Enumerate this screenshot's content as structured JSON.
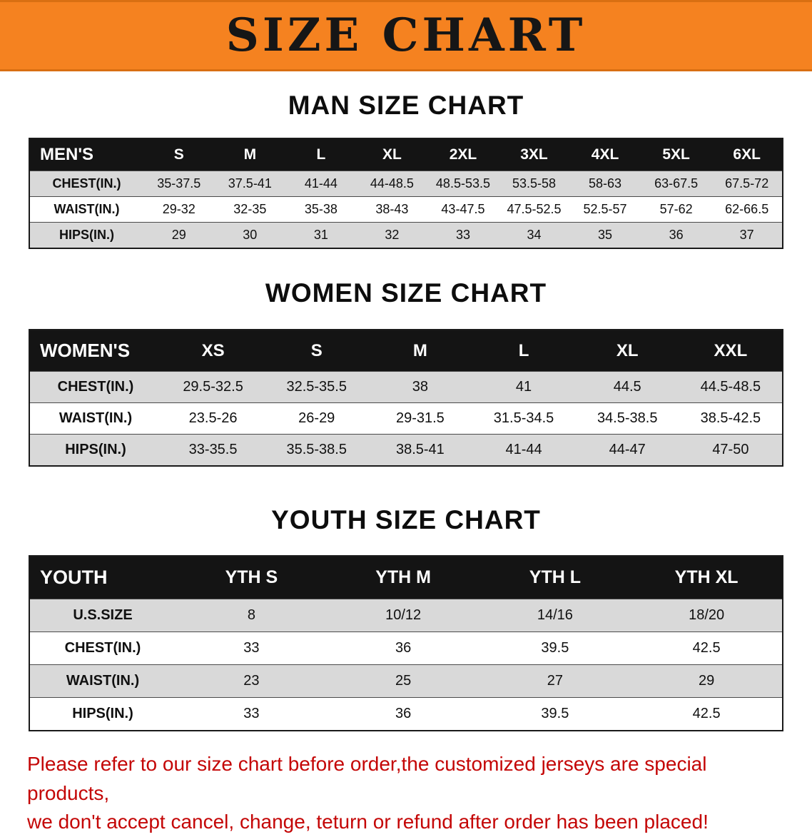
{
  "banner": {
    "title": "SIZE CHART",
    "bg_color": "#f58220",
    "text_color": "#161616"
  },
  "sections": {
    "men": {
      "heading": "MAN SIZE CHART",
      "table": {
        "name": "MEN'S",
        "columns": [
          "S",
          "M",
          "L",
          "XL",
          "2XL",
          "3XL",
          "4XL",
          "5XL",
          "6XL"
        ],
        "rows": [
          {
            "label": "CHEST(IN.)",
            "values": [
              "35-37.5",
              "37.5-41",
              "41-44",
              "44-48.5",
              "48.5-53.5",
              "53.5-58",
              "58-63",
              "63-67.5",
              "67.5-72"
            ]
          },
          {
            "label": "WAIST(IN.)",
            "values": [
              "29-32",
              "32-35",
              "35-38",
              "38-43",
              "43-47.5",
              "47.5-52.5",
              "52.5-57",
              "57-62",
              "62-66.5"
            ]
          },
          {
            "label": "HIPS(IN.)",
            "values": [
              "29",
              "30",
              "31",
              "32",
              "33",
              "34",
              "35",
              "36",
              "37"
            ]
          }
        ]
      }
    },
    "women": {
      "heading": "WOMEN SIZE CHART",
      "table": {
        "name": "WOMEN'S",
        "columns": [
          "XS",
          "S",
          "M",
          "L",
          "XL",
          "XXL"
        ],
        "rows": [
          {
            "label": "CHEST(IN.)",
            "values": [
              "29.5-32.5",
              "32.5-35.5",
              "38",
              "41",
              "44.5",
              "44.5-48.5"
            ]
          },
          {
            "label": "WAIST(IN.)",
            "values": [
              "23.5-26",
              "26-29",
              "29-31.5",
              "31.5-34.5",
              "34.5-38.5",
              "38.5-42.5"
            ]
          },
          {
            "label": "HIPS(IN.)",
            "values": [
              "33-35.5",
              "35.5-38.5",
              "38.5-41",
              "41-44",
              "44-47",
              "47-50"
            ]
          }
        ]
      }
    },
    "youth": {
      "heading": "YOUTH SIZE CHART",
      "table": {
        "name": "YOUTH",
        "columns": [
          "YTH S",
          "YTH M",
          "YTH L",
          "YTH XL"
        ],
        "rows": [
          {
            "label": "U.S.SIZE",
            "values": [
              "8",
              "10/12",
              "14/16",
              "18/20"
            ]
          },
          {
            "label": "CHEST(IN.)",
            "values": [
              "33",
              "36",
              "39.5",
              "42.5"
            ]
          },
          {
            "label": "WAIST(IN.)",
            "values": [
              "23",
              "25",
              "27",
              "29"
            ]
          },
          {
            "label": "HIPS(IN.)",
            "values": [
              "33",
              "36",
              "39.5",
              "42.5"
            ]
          }
        ]
      }
    }
  },
  "footer": {
    "color": "#c40606",
    "lines": [
      "Please refer to our size chart before order,the customized jerseys are special products,",
      "we don't accept cancel, change, teturn or refund after order has been placed!"
    ]
  }
}
